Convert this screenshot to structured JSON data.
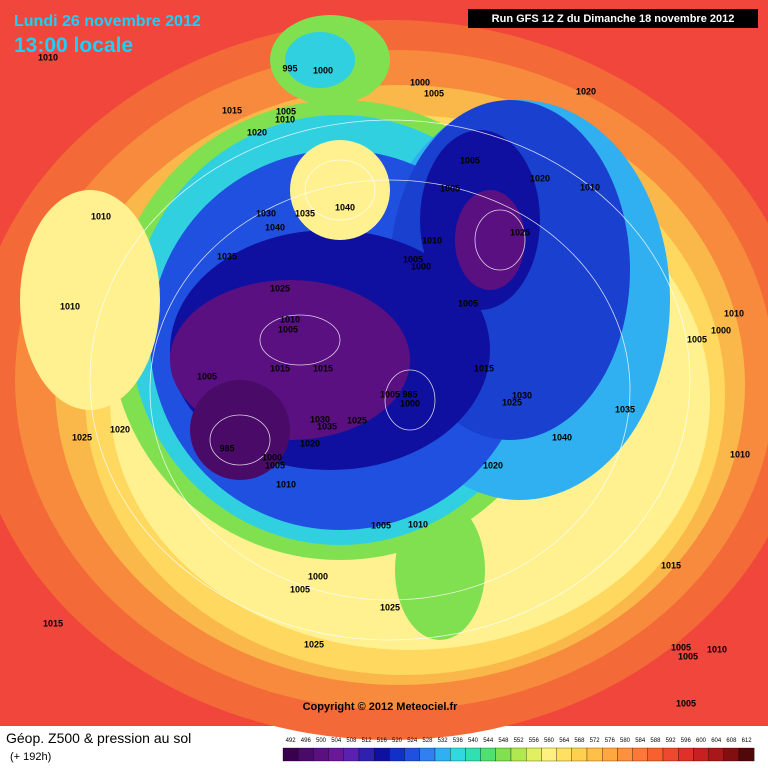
{
  "header": {
    "date": "Lundi 26 novembre 2012",
    "time": "13:00 locale",
    "run": "Run GFS 12 Z du Dimanche 18 novembre 2012"
  },
  "map": {
    "copyright": "Copyright © 2012 Meteociel.fr",
    "isobar_labels": [
      1010,
      995,
      1000,
      1015,
      1005,
      1010,
      1020,
      1000,
      1005,
      1020,
      1005,
      1005,
      1020,
      1010,
      1040,
      1030,
      1035,
      1040,
      1010,
      1035,
      1010,
      1025,
      1005,
      1000,
      1025,
      1005,
      1010,
      1010,
      1005,
      1010,
      1000,
      1005,
      1005,
      1015,
      1015,
      1015,
      1005,
      985,
      1000,
      1030,
      1025,
      1035,
      1025,
      1020,
      1030,
      1035,
      1025,
      1040,
      985,
      1020,
      1000,
      1005,
      1010,
      1020,
      1010,
      1005,
      1010,
      1000,
      1005,
      1015,
      1025,
      1015,
      1025,
      1005,
      1005,
      1010,
      1005
    ]
  },
  "footer": {
    "title": "Géop. Z500 & pression au sol",
    "lead": "(+ 192h)",
    "scale": {
      "values": [
        492,
        496,
        500,
        504,
        508,
        512,
        516,
        520,
        524,
        528,
        532,
        536,
        540,
        544,
        548,
        552,
        556,
        560,
        564,
        568,
        572,
        576,
        580,
        584,
        588,
        592,
        596,
        600,
        604,
        608,
        612
      ],
      "colors": [
        "#3a0050",
        "#4a0a68",
        "#5a1080",
        "#6a1898",
        "#5a20b0",
        "#3020b0",
        "#1010a0",
        "#1030c8",
        "#2050e0",
        "#3080f0",
        "#30b0f0",
        "#30d8e0",
        "#30e0b0",
        "#50e070",
        "#80e050",
        "#b0e850",
        "#e0f060",
        "#fff080",
        "#ffe060",
        "#ffd050",
        "#ffc048",
        "#ffa840",
        "#ff9040",
        "#ff7838",
        "#f86030",
        "#f04830",
        "#e03028",
        "#c82020",
        "#a81818",
        "#801010",
        "#500808"
      ]
    }
  }
}
